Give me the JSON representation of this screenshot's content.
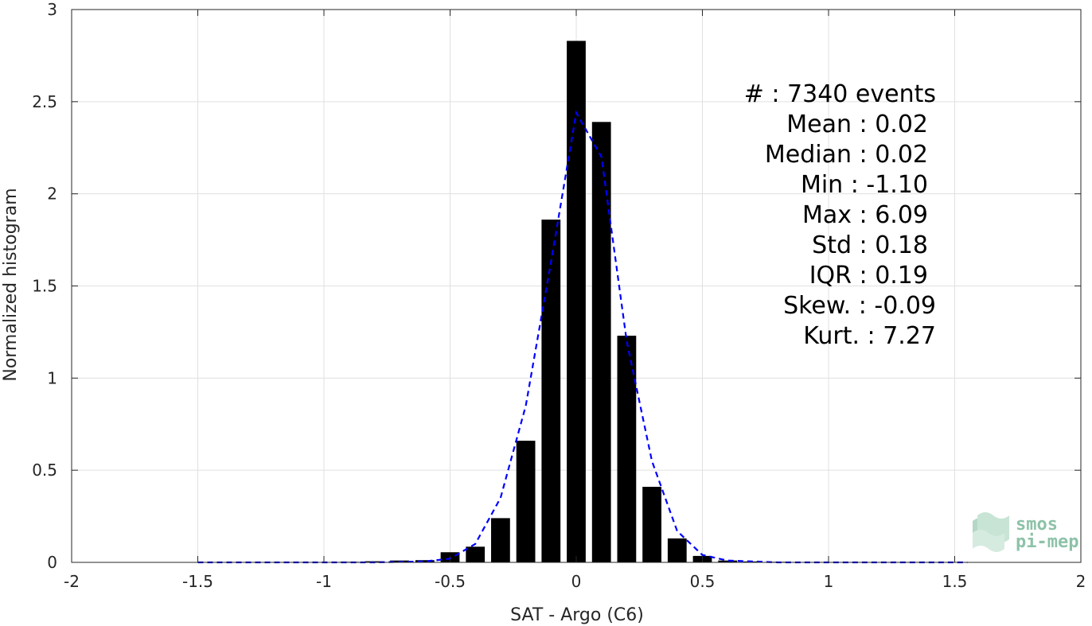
{
  "chart_data": {
    "type": "bar",
    "xlabel": "SAT - Argo (C6)",
    "ylabel": "Normalized histogram",
    "xlim": [
      -2,
      2
    ],
    "ylim": [
      0,
      3
    ],
    "xticks": [
      "-2",
      "-1.5",
      "-1",
      "-0.5",
      "0",
      "0.5",
      "1",
      "1.5",
      "2"
    ],
    "yticks": [
      "0",
      "0.5",
      "1",
      "1.5",
      "2",
      "2.5",
      "3"
    ],
    "grid": true,
    "bar_color": "#000000",
    "fit_color": "#0000ff",
    "bars": {
      "x": [
        -1.0,
        -0.9,
        -0.8,
        -0.7,
        -0.6,
        -0.5,
        -0.4,
        -0.3,
        -0.2,
        -0.1,
        0.0,
        0.1,
        0.2,
        0.3,
        0.4,
        0.5,
        0.6,
        0.7,
        0.8,
        0.9
      ],
      "values": [
        0.002,
        0.003,
        0.006,
        0.01,
        0.012,
        0.055,
        0.085,
        0.24,
        0.66,
        1.86,
        2.83,
        2.39,
        1.23,
        0.41,
        0.13,
        0.035,
        0.01,
        0.005,
        0.003,
        0.002
      ]
    },
    "fit": {
      "x": [
        -1.5,
        -1.0,
        -0.8,
        -0.6,
        -0.5,
        -0.4,
        -0.3,
        -0.2,
        -0.1,
        0.0,
        0.1,
        0.2,
        0.3,
        0.4,
        0.5,
        0.6,
        0.8,
        1.0,
        1.55
      ],
      "values": [
        0.0,
        0.0,
        0.0,
        0.005,
        0.02,
        0.1,
        0.35,
        0.85,
        1.63,
        2.44,
        2.2,
        1.2,
        0.55,
        0.17,
        0.04,
        0.01,
        0.0,
        0.0,
        0.0
      ]
    }
  },
  "stats": [
    "#  : 7340 events",
    "Mean : 0.02",
    "Median : 0.02",
    "Min : -1.10",
    "Max : 6.09",
    "Std : 0.18",
    "IQR : 0.19",
    "Skew. : -0.09",
    "Kurt. : 7.27"
  ],
  "logo": {
    "line1": "smos",
    "line2": "pi-mep",
    "color": "#7ab89a"
  }
}
